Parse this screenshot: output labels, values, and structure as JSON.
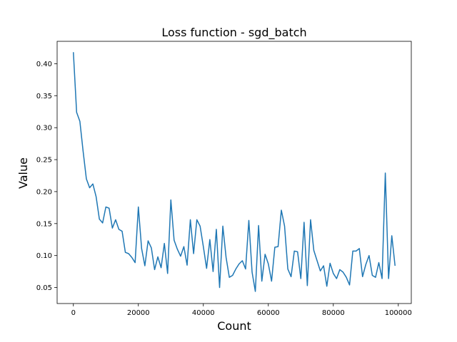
{
  "chart_data": {
    "type": "line",
    "title": "Loss function - sgd_batch",
    "xlabel": "Count",
    "ylabel": "Value",
    "xlim": [
      -5000,
      104000
    ],
    "ylim": [
      0.025,
      0.435
    ],
    "xticks": [
      0,
      20000,
      40000,
      60000,
      80000,
      100000
    ],
    "xtick_labels": [
      "0",
      "20000",
      "40000",
      "60000",
      "80000",
      "100000"
    ],
    "yticks": [
      0.05,
      0.1,
      0.15,
      0.2,
      0.25,
      0.3,
      0.35,
      0.4
    ],
    "ytick_labels": [
      "0.05",
      "0.10",
      "0.15",
      "0.20",
      "0.25",
      "0.30",
      "0.35",
      "0.40"
    ],
    "grid": false,
    "line_color": "#1f77b4",
    "x": [
      0,
      1000,
      2000,
      3000,
      4000,
      5000,
      6000,
      7000,
      8000,
      9000,
      10000,
      11000,
      12000,
      13000,
      14000,
      15000,
      16000,
      17000,
      18000,
      19000,
      20000,
      21000,
      22000,
      23000,
      24000,
      25000,
      26000,
      27000,
      28000,
      29000,
      30000,
      31000,
      32000,
      33000,
      34000,
      35000,
      36000,
      37000,
      38000,
      39000,
      40000,
      41000,
      42000,
      43000,
      44000,
      45000,
      46000,
      47000,
      48000,
      49000,
      50000,
      51000,
      52000,
      53000,
      54000,
      55000,
      56000,
      57000,
      58000,
      59000,
      60000,
      61000,
      62000,
      63000,
      64000,
      65000,
      66000,
      67000,
      68000,
      69000,
      70000,
      71000,
      72000,
      73000,
      74000,
      75000,
      76000,
      77000,
      78000,
      79000,
      80000,
      81000,
      82000,
      83000,
      84000,
      85000,
      86000,
      87000,
      88000,
      89000,
      90000,
      91000,
      92000,
      93000,
      94000,
      95000,
      96000,
      97000,
      98000,
      99000
    ],
    "y": [
      0.418,
      0.324,
      0.31,
      0.263,
      0.22,
      0.206,
      0.212,
      0.192,
      0.157,
      0.151,
      0.176,
      0.174,
      0.143,
      0.156,
      0.141,
      0.138,
      0.105,
      0.103,
      0.097,
      0.089,
      0.176,
      0.111,
      0.084,
      0.123,
      0.112,
      0.078,
      0.098,
      0.081,
      0.119,
      0.072,
      0.187,
      0.124,
      0.11,
      0.099,
      0.114,
      0.085,
      0.156,
      0.103,
      0.156,
      0.146,
      0.114,
      0.08,
      0.125,
      0.075,
      0.141,
      0.05,
      0.146,
      0.097,
      0.066,
      0.069,
      0.079,
      0.087,
      0.092,
      0.079,
      0.155,
      0.074,
      0.044,
      0.147,
      0.06,
      0.102,
      0.087,
      0.06,
      0.113,
      0.114,
      0.171,
      0.146,
      0.079,
      0.067,
      0.107,
      0.106,
      0.064,
      0.152,
      0.053,
      0.156,
      0.108,
      0.092,
      0.076,
      0.084,
      0.052,
      0.088,
      0.072,
      0.064,
      0.078,
      0.074,
      0.066,
      0.054,
      0.107,
      0.107,
      0.111,
      0.067,
      0.086,
      0.1,
      0.069,
      0.066,
      0.089,
      0.064,
      0.229,
      0.064,
      0.131,
      0.084
    ]
  }
}
